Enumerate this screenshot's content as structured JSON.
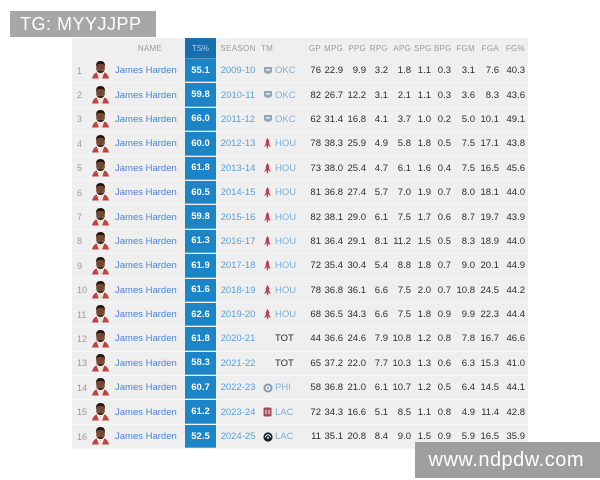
{
  "page": {
    "tag": "TG: MYYJJPP",
    "watermark": "www.ndpdw.com"
  },
  "colors": {
    "ts_column_bg": "#1b85c8",
    "ts_header_bg": "#176fb0",
    "player_link_blue": "#4b82d8",
    "season_blue": "#57a1d9",
    "team_blue": "#7cb0d9",
    "tag_bg": "#a7a7a7",
    "watermark_bg": "#9e9e9e",
    "table_bg": "#efefef",
    "rockets_red": "#bb4054"
  },
  "table": {
    "headers": [
      "NAME",
      "TS%",
      "SEASON",
      "TM",
      "GP",
      "MPG",
      "PPG",
      "RPG",
      "APG",
      "SPG",
      "BPG",
      "FGM",
      "FGA",
      "FG%"
    ],
    "rows": [
      {
        "num": "1",
        "name": "James Harden",
        "ts": "55.1",
        "season": "2009-10",
        "team": "OKC",
        "team_icon": "okc-thunder-logo-icon",
        "gp": "76",
        "mpg": "22.9",
        "ppg": "9.9",
        "rpg": "3.2",
        "apg": "1.8",
        "spg": "1.1",
        "bpg": "0.3",
        "fgm": "3.1",
        "fga": "7.6",
        "fgp": "40.3"
      },
      {
        "num": "2",
        "name": "James Harden",
        "ts": "59.8",
        "season": "2010-11",
        "team": "OKC",
        "team_icon": "okc-thunder-logo-icon",
        "gp": "82",
        "mpg": "26.7",
        "ppg": "12.2",
        "rpg": "3.1",
        "apg": "2.1",
        "spg": "1.1",
        "bpg": "0.3",
        "fgm": "3.6",
        "fga": "8.3",
        "fgp": "43.6"
      },
      {
        "num": "3",
        "name": "James Harden",
        "ts": "66.0",
        "season": "2011-12",
        "team": "OKC",
        "team_icon": "okc-thunder-logo-icon",
        "gp": "62",
        "mpg": "31.4",
        "ppg": "16.8",
        "rpg": "4.1",
        "apg": "3.7",
        "spg": "1.0",
        "bpg": "0.2",
        "fgm": "5.0",
        "fga": "10.1",
        "fgp": "49.1"
      },
      {
        "num": "4",
        "name": "James Harden",
        "ts": "60.0",
        "season": "2012-13",
        "team": "HOU",
        "team_icon": "hou-rockets-logo-icon",
        "gp": "78",
        "mpg": "38.3",
        "ppg": "25.9",
        "rpg": "4.9",
        "apg": "5.8",
        "spg": "1.8",
        "bpg": "0.5",
        "fgm": "7.5",
        "fga": "17.1",
        "fgp": "43.8"
      },
      {
        "num": "5",
        "name": "James Harden",
        "ts": "61.8",
        "season": "2013-14",
        "team": "HOU",
        "team_icon": "hou-rockets-logo-icon",
        "gp": "73",
        "mpg": "38.0",
        "ppg": "25.4",
        "rpg": "4.7",
        "apg": "6.1",
        "spg": "1.6",
        "bpg": "0.4",
        "fgm": "7.5",
        "fga": "16.5",
        "fgp": "45.6"
      },
      {
        "num": "6",
        "name": "James Harden",
        "ts": "60.5",
        "season": "2014-15",
        "team": "HOU",
        "team_icon": "hou-rockets-logo-icon",
        "gp": "81",
        "mpg": "36.8",
        "ppg": "27.4",
        "rpg": "5.7",
        "apg": "7.0",
        "spg": "1.9",
        "bpg": "0.7",
        "fgm": "8.0",
        "fga": "18.1",
        "fgp": "44.0"
      },
      {
        "num": "7",
        "name": "James Harden",
        "ts": "59.8",
        "season": "2015-16",
        "team": "HOU",
        "team_icon": "hou-rockets-logo-icon",
        "gp": "82",
        "mpg": "38.1",
        "ppg": "29.0",
        "rpg": "6.1",
        "apg": "7.5",
        "spg": "1.7",
        "bpg": "0.6",
        "fgm": "8.7",
        "fga": "19.7",
        "fgp": "43.9"
      },
      {
        "num": "8",
        "name": "James Harden",
        "ts": "61.3",
        "season": "2016-17",
        "team": "HOU",
        "team_icon": "hou-rockets-logo-icon",
        "gp": "81",
        "mpg": "36.4",
        "ppg": "29.1",
        "rpg": "8.1",
        "apg": "11.2",
        "spg": "1.5",
        "bpg": "0.5",
        "fgm": "8.3",
        "fga": "18.9",
        "fgp": "44.0"
      },
      {
        "num": "9",
        "name": "James Harden",
        "ts": "61.9",
        "season": "2017-18",
        "team": "HOU",
        "team_icon": "hou-rockets-logo-icon",
        "gp": "72",
        "mpg": "35.4",
        "ppg": "30.4",
        "rpg": "5.4",
        "apg": "8.8",
        "spg": "1.8",
        "bpg": "0.7",
        "fgm": "9.0",
        "fga": "20.1",
        "fgp": "44.9"
      },
      {
        "num": "10",
        "name": "James Harden",
        "ts": "61.6",
        "season": "2018-19",
        "team": "HOU",
        "team_icon": "hou-rockets-logo-icon",
        "gp": "78",
        "mpg": "36.8",
        "ppg": "36.1",
        "rpg": "6.6",
        "apg": "7.5",
        "spg": "2.0",
        "bpg": "0.7",
        "fgm": "10.8",
        "fga": "24.5",
        "fgp": "44.2"
      },
      {
        "num": "11",
        "name": "James Harden",
        "ts": "62.6",
        "season": "2019-20",
        "team": "HOU",
        "team_icon": "hou-rockets-logo-icon",
        "gp": "68",
        "mpg": "36.5",
        "ppg": "34.3",
        "rpg": "6.6",
        "apg": "7.5",
        "spg": "1.8",
        "bpg": "0.9",
        "fgm": "9.9",
        "fga": "22.3",
        "fgp": "44.4"
      },
      {
        "num": "12",
        "name": "James Harden",
        "ts": "61.8",
        "season": "2020-21",
        "team": "TOT",
        "team_icon": null,
        "gp": "44",
        "mpg": "36.6",
        "ppg": "24.6",
        "rpg": "7.9",
        "apg": "10.8",
        "spg": "1.2",
        "bpg": "0.8",
        "fgm": "7.8",
        "fga": "16.7",
        "fgp": "46.6"
      },
      {
        "num": "13",
        "name": "James Harden",
        "ts": "58.3",
        "season": "2021-22",
        "team": "TOT",
        "team_icon": null,
        "gp": "65",
        "mpg": "37.2",
        "ppg": "22.0",
        "rpg": "7.7",
        "apg": "10.3",
        "spg": "1.3",
        "bpg": "0.6",
        "fgm": "6.3",
        "fga": "15.3",
        "fgp": "41.0"
      },
      {
        "num": "14",
        "name": "James Harden",
        "ts": "60.7",
        "season": "2022-23",
        "team": "PHI",
        "team_icon": "phi-76ers-logo-icon",
        "gp": "58",
        "mpg": "36.8",
        "ppg": "21.0",
        "rpg": "6.1",
        "apg": "10.7",
        "spg": "1.2",
        "bpg": "0.5",
        "fgm": "6.4",
        "fga": "14.5",
        "fgp": "44.1"
      },
      {
        "num": "15",
        "name": "James Harden",
        "ts": "61.2",
        "season": "2023-24",
        "team": "LAC",
        "team_icon": "lac-clippers-logo-icon",
        "gp": "72",
        "mpg": "34.3",
        "ppg": "16.6",
        "rpg": "5.1",
        "apg": "8.5",
        "spg": "1.1",
        "bpg": "0.8",
        "fgm": "4.9",
        "fga": "11.4",
        "fgp": "42.8"
      },
      {
        "num": "16",
        "name": "James Harden",
        "ts": "52.5",
        "season": "2024-25",
        "team": "LAC",
        "team_icon": "lac-clippers-alt-logo-icon",
        "gp": "11",
        "mpg": "35.1",
        "ppg": "20.8",
        "rpg": "8.4",
        "apg": "9.0",
        "spg": "1.5",
        "bpg": "0.9",
        "fgm": "5.9",
        "fga": "16.5",
        "fgp": "35.9"
      }
    ]
  }
}
